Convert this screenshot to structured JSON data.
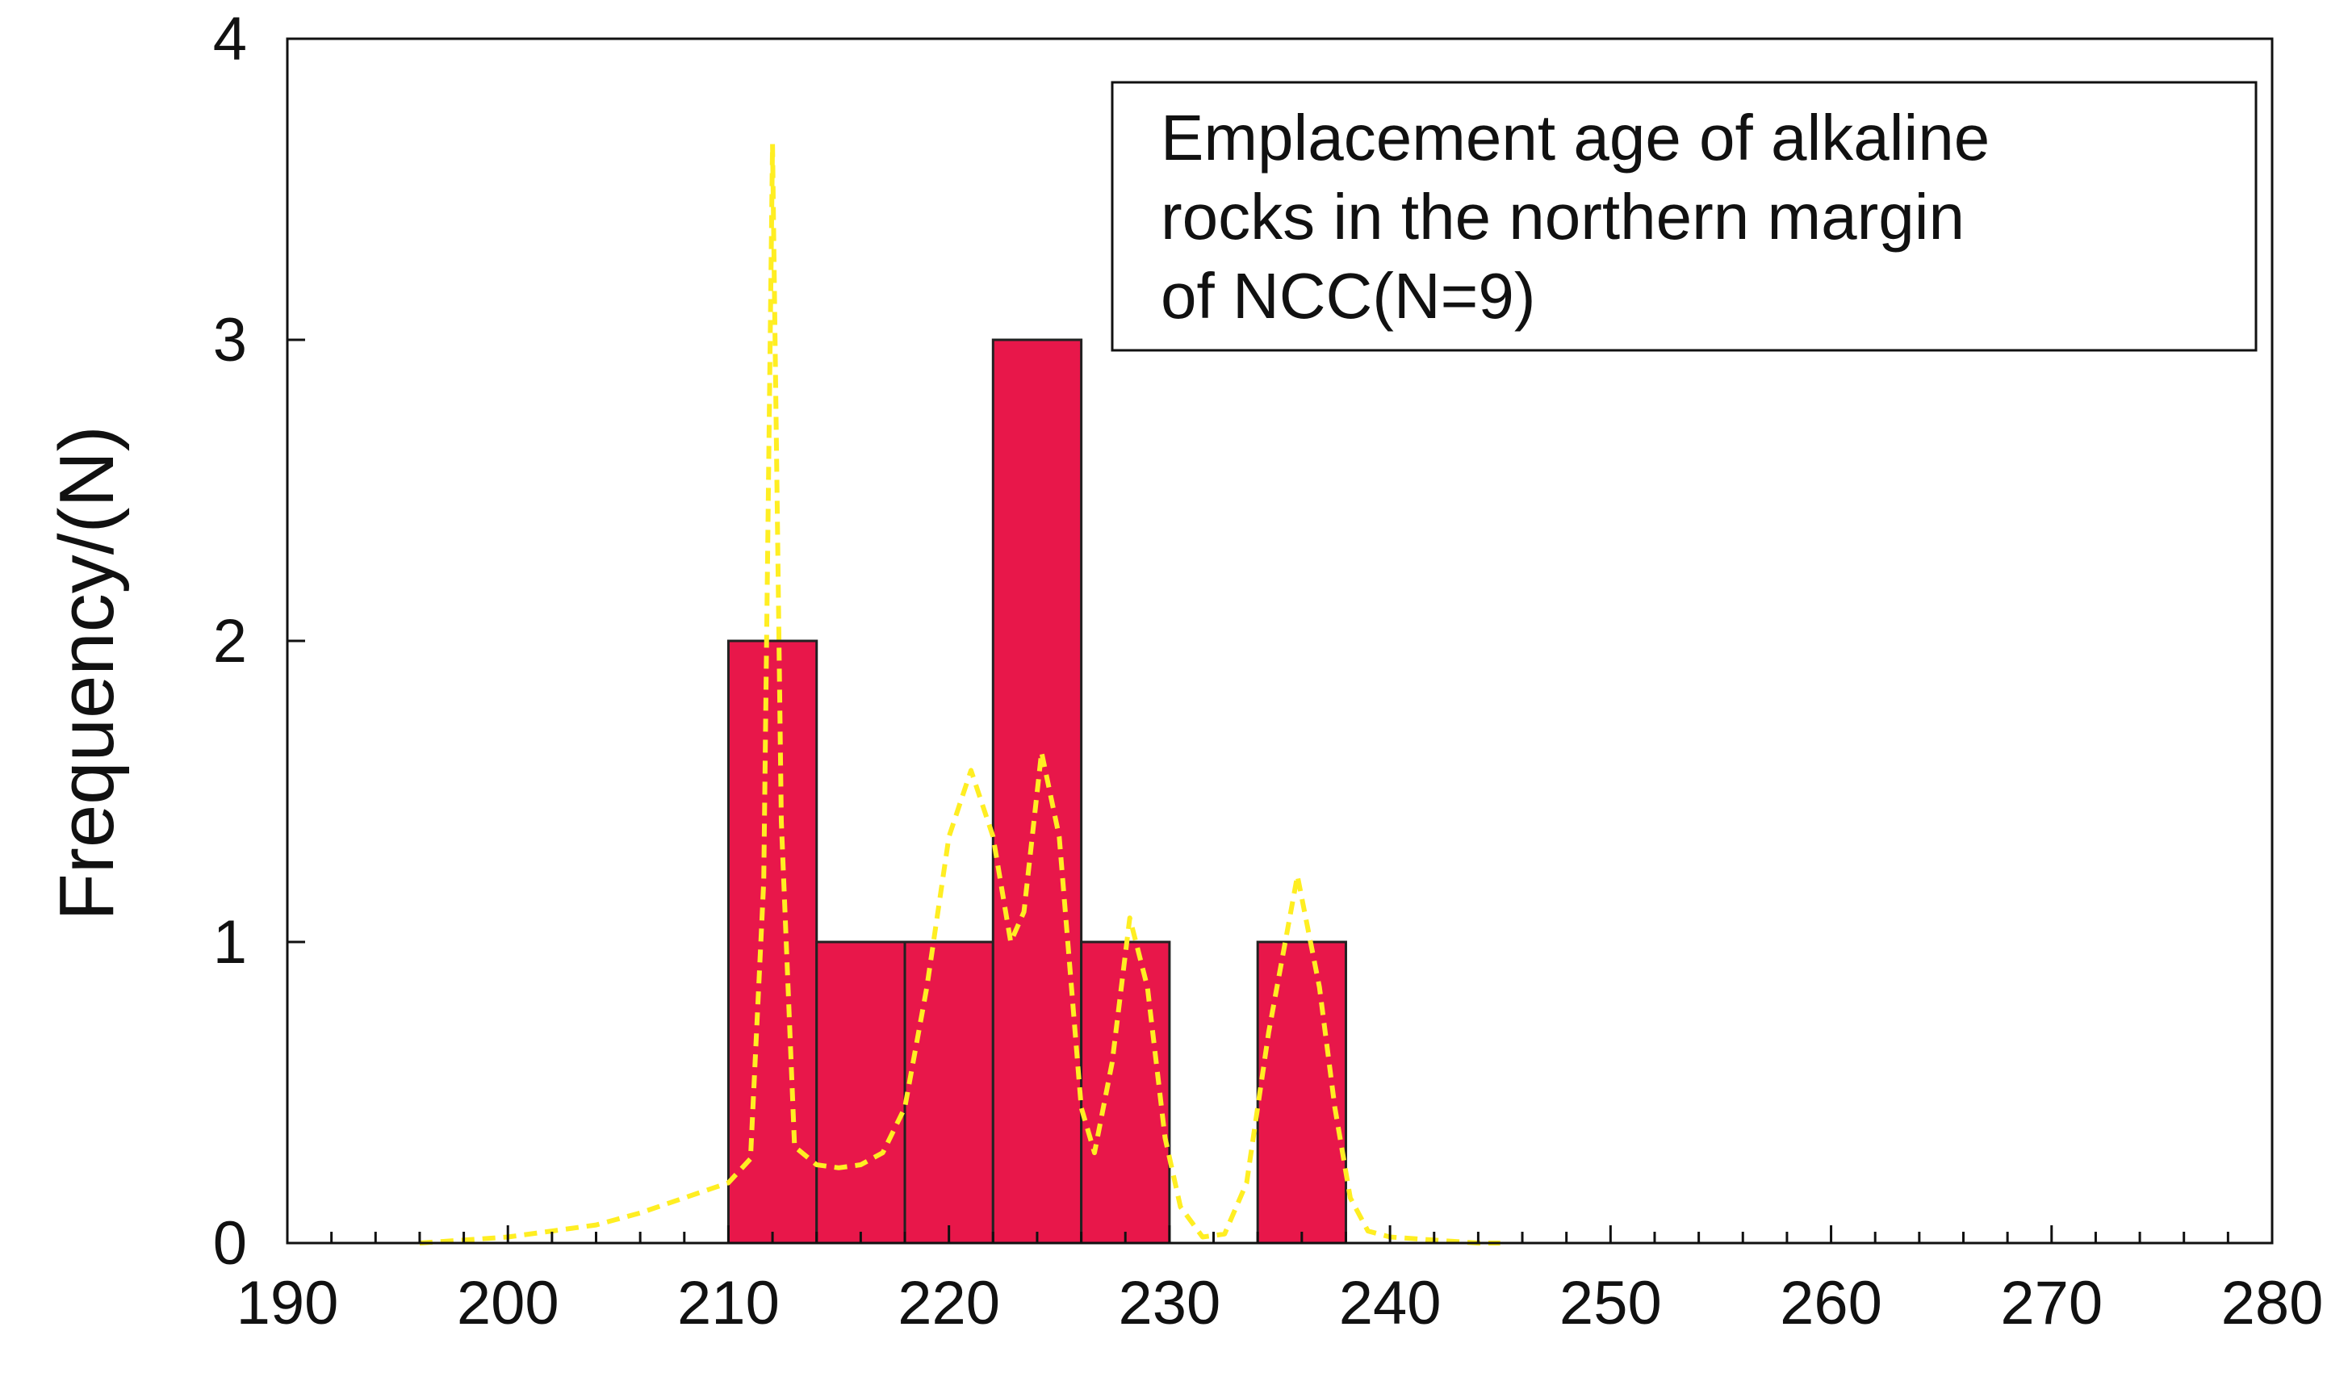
{
  "chart_data": {
    "type": "bar",
    "subtype": "histogram with probability density curve",
    "xlabel": "",
    "ylabel": "Frequency/(N)",
    "xlim": [
      190,
      280
    ],
    "ylim": [
      0,
      4
    ],
    "x_ticks": [
      190,
      200,
      210,
      220,
      230,
      240,
      250,
      260,
      270,
      280
    ],
    "y_ticks": [
      0,
      1,
      2,
      3,
      4
    ],
    "bins": [
      {
        "start": 210,
        "end": 214,
        "value": 2
      },
      {
        "start": 214,
        "end": 218,
        "value": 1
      },
      {
        "start": 218,
        "end": 222,
        "value": 1
      },
      {
        "start": 222,
        "end": 226,
        "value": 3
      },
      {
        "start": 226,
        "end": 230,
        "value": 1
      },
      {
        "start": 234,
        "end": 238,
        "value": 1
      }
    ],
    "curve": {
      "style": "dashed",
      "points": [
        [
          196,
          0.0
        ],
        [
          198,
          0.01
        ],
        [
          200,
          0.02
        ],
        [
          202,
          0.04
        ],
        [
          204,
          0.06
        ],
        [
          206,
          0.1
        ],
        [
          208,
          0.15
        ],
        [
          210,
          0.2
        ],
        [
          211,
          0.28
        ],
        [
          211.6,
          1.2
        ],
        [
          212.0,
          3.65
        ],
        [
          212.4,
          1.4
        ],
        [
          213,
          0.32
        ],
        [
          214,
          0.26
        ],
        [
          215,
          0.25
        ],
        [
          216,
          0.26
        ],
        [
          217,
          0.3
        ],
        [
          218,
          0.45
        ],
        [
          219,
          0.85
        ],
        [
          220,
          1.35
        ],
        [
          221,
          1.57
        ],
        [
          222,
          1.35
        ],
        [
          222.8,
          1.0
        ],
        [
          223.4,
          1.1
        ],
        [
          224.2,
          1.63
        ],
        [
          225,
          1.35
        ],
        [
          226,
          0.45
        ],
        [
          226.6,
          0.3
        ],
        [
          227.4,
          0.6
        ],
        [
          228.2,
          1.08
        ],
        [
          229,
          0.85
        ],
        [
          229.8,
          0.35
        ],
        [
          230.5,
          0.12
        ],
        [
          231.5,
          0.02
        ],
        [
          232.5,
          0.03
        ],
        [
          233.5,
          0.2
        ],
        [
          234.5,
          0.7
        ],
        [
          235.8,
          1.22
        ],
        [
          236.8,
          0.85
        ],
        [
          237.5,
          0.45
        ],
        [
          238.2,
          0.15
        ],
        [
          239,
          0.04
        ],
        [
          240,
          0.02
        ],
        [
          242,
          0.01
        ],
        [
          244,
          0.0
        ],
        [
          245,
          0.0
        ]
      ]
    },
    "legend_text": [
      "Emplacement age of alkaline",
      "rocks in the northern margin",
      "of NCC(N=9)"
    ],
    "legend_position": "top-right",
    "grid": false
  },
  "colors": {
    "bar_fill": "#e8174a",
    "bar_stroke": "#222222",
    "curve": "#ffee22",
    "axis": "#111111"
  }
}
